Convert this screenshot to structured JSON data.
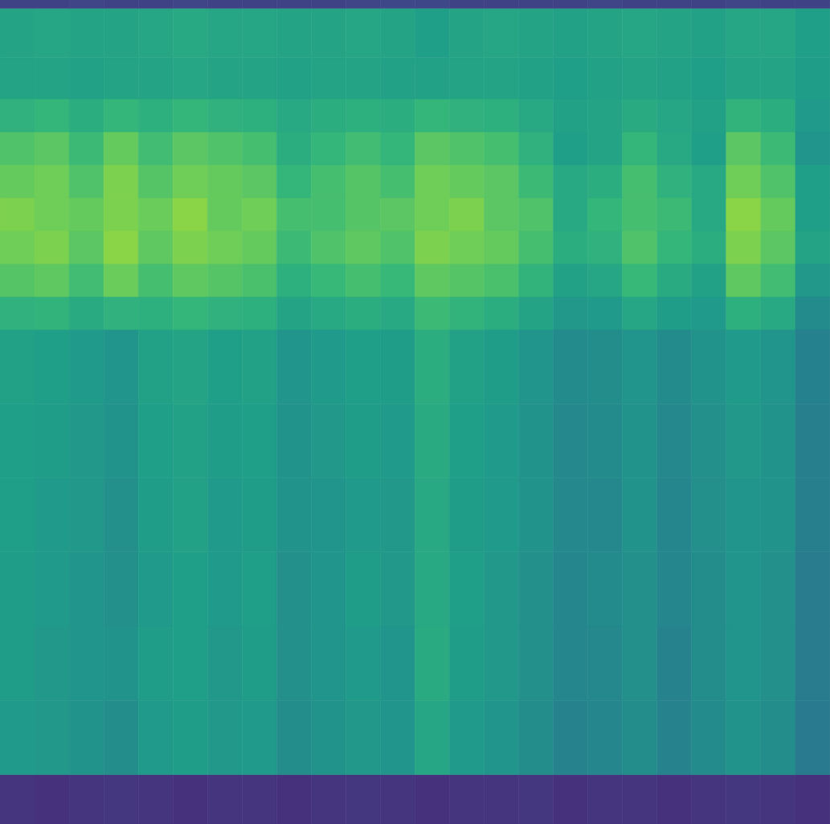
{
  "chart_data": {
    "type": "heatmap",
    "tick_labels": false,
    "ylim": [
      0,
      100
    ],
    "y_bins": [
      0,
      6,
      15,
      24,
      33,
      42,
      51,
      60,
      64,
      68,
      72,
      76,
      80,
      84,
      88,
      93,
      99,
      100
    ],
    "color_range": [
      0,
      1
    ],
    "cells": [
      [
        0.15,
        0.14,
        0.15,
        0.16,
        0.15,
        0.14,
        0.15,
        0.15,
        0.14,
        0.15,
        0.16,
        0.15,
        0.14,
        0.15,
        0.15,
        0.16,
        0.14,
        0.15,
        0.15,
        0.14,
        0.15,
        0.16,
        0.15,
        0.14
      ],
      [
        0.54,
        0.53,
        0.51,
        0.49,
        0.54,
        0.55,
        0.53,
        0.54,
        0.49,
        0.51,
        0.53,
        0.52,
        0.59,
        0.54,
        0.52,
        0.49,
        0.45,
        0.46,
        0.49,
        0.45,
        0.48,
        0.51,
        0.49,
        0.41
      ],
      [
        0.55,
        0.53,
        0.52,
        0.51,
        0.55,
        0.56,
        0.53,
        0.55,
        0.5,
        0.52,
        0.54,
        0.52,
        0.61,
        0.55,
        0.53,
        0.5,
        0.46,
        0.47,
        0.5,
        0.45,
        0.49,
        0.52,
        0.5,
        0.42
      ],
      [
        0.55,
        0.54,
        0.52,
        0.5,
        0.54,
        0.56,
        0.54,
        0.56,
        0.5,
        0.52,
        0.55,
        0.53,
        0.6,
        0.56,
        0.53,
        0.5,
        0.46,
        0.48,
        0.5,
        0.46,
        0.49,
        0.52,
        0.5,
        0.42
      ],
      [
        0.56,
        0.54,
        0.53,
        0.5,
        0.55,
        0.57,
        0.54,
        0.55,
        0.51,
        0.52,
        0.54,
        0.53,
        0.6,
        0.55,
        0.54,
        0.51,
        0.47,
        0.47,
        0.51,
        0.46,
        0.5,
        0.52,
        0.51,
        0.43
      ],
      [
        0.56,
        0.55,
        0.53,
        0.51,
        0.56,
        0.57,
        0.55,
        0.56,
        0.51,
        0.53,
        0.55,
        0.54,
        0.61,
        0.56,
        0.54,
        0.51,
        0.47,
        0.48,
        0.51,
        0.47,
        0.5,
        0.53,
        0.51,
        0.43
      ],
      [
        0.57,
        0.56,
        0.54,
        0.52,
        0.57,
        0.58,
        0.56,
        0.57,
        0.52,
        0.54,
        0.56,
        0.55,
        0.62,
        0.57,
        0.55,
        0.52,
        0.48,
        0.49,
        0.52,
        0.48,
        0.51,
        0.54,
        0.52,
        0.44
      ],
      [
        0.64,
        0.65,
        0.61,
        0.64,
        0.63,
        0.66,
        0.64,
        0.63,
        0.58,
        0.6,
        0.62,
        0.6,
        0.68,
        0.65,
        0.62,
        0.58,
        0.53,
        0.54,
        0.59,
        0.55,
        0.54,
        0.63,
        0.6,
        0.48
      ],
      [
        0.73,
        0.75,
        0.69,
        0.77,
        0.7,
        0.75,
        0.73,
        0.71,
        0.63,
        0.67,
        0.7,
        0.67,
        0.75,
        0.73,
        0.71,
        0.65,
        0.57,
        0.59,
        0.67,
        0.61,
        0.57,
        0.75,
        0.69,
        0.53
      ],
      [
        0.78,
        0.8,
        0.74,
        0.82,
        0.75,
        0.8,
        0.78,
        0.76,
        0.68,
        0.72,
        0.75,
        0.72,
        0.8,
        0.78,
        0.76,
        0.7,
        0.62,
        0.64,
        0.72,
        0.66,
        0.62,
        0.8,
        0.74,
        0.58
      ],
      [
        0.8,
        0.78,
        0.76,
        0.8,
        0.77,
        0.82,
        0.76,
        0.78,
        0.7,
        0.7,
        0.73,
        0.74,
        0.78,
        0.8,
        0.74,
        0.72,
        0.6,
        0.66,
        0.7,
        0.68,
        0.6,
        0.82,
        0.76,
        0.56
      ],
      [
        0.76,
        0.78,
        0.72,
        0.8,
        0.73,
        0.78,
        0.76,
        0.74,
        0.66,
        0.7,
        0.73,
        0.7,
        0.78,
        0.76,
        0.74,
        0.68,
        0.6,
        0.62,
        0.7,
        0.64,
        0.6,
        0.78,
        0.72,
        0.56
      ],
      [
        0.72,
        0.74,
        0.68,
        0.76,
        0.69,
        0.74,
        0.72,
        0.7,
        0.62,
        0.66,
        0.69,
        0.66,
        0.74,
        0.72,
        0.7,
        0.64,
        0.56,
        0.58,
        0.66,
        0.6,
        0.56,
        0.74,
        0.68,
        0.52
      ],
      [
        0.64,
        0.66,
        0.62,
        0.66,
        0.63,
        0.66,
        0.64,
        0.63,
        0.6,
        0.62,
        0.63,
        0.62,
        0.66,
        0.64,
        0.63,
        0.6,
        0.57,
        0.58,
        0.61,
        0.59,
        0.57,
        0.65,
        0.62,
        0.54
      ],
      [
        0.58,
        0.58,
        0.57,
        0.58,
        0.58,
        0.59,
        0.58,
        0.58,
        0.57,
        0.58,
        0.58,
        0.57,
        0.57,
        0.58,
        0.58,
        0.57,
        0.56,
        0.57,
        0.58,
        0.57,
        0.56,
        0.58,
        0.58,
        0.55
      ],
      [
        0.58,
        0.59,
        0.58,
        0.58,
        0.59,
        0.6,
        0.59,
        0.59,
        0.58,
        0.58,
        0.59,
        0.58,
        0.56,
        0.58,
        0.59,
        0.58,
        0.57,
        0.58,
        0.59,
        0.58,
        0.57,
        0.59,
        0.59,
        0.56
      ],
      [
        0.2,
        0.2,
        0.21,
        0.2,
        0.2,
        0.21,
        0.2,
        0.2,
        0.2,
        0.2,
        0.21,
        0.22,
        0.22,
        0.2,
        0.2,
        0.2,
        0.2,
        0.21,
        0.2,
        0.2,
        0.2,
        0.21,
        0.2,
        0.2
      ]
    ]
  }
}
